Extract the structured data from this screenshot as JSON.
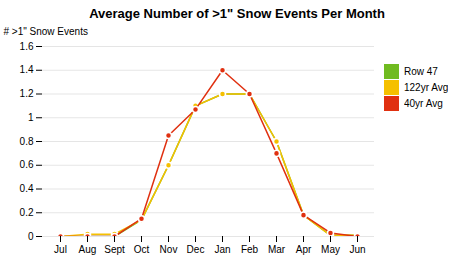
{
  "chart_data": {
    "type": "line",
    "title": "Average Number of >1\" Snow Events Per Month",
    "ylabel": "# >1\" Snow Events",
    "categories": [
      "Jul",
      "Aug",
      "Sept",
      "Oct",
      "Nov",
      "Dec",
      "Jan",
      "Feb",
      "Mar",
      "Apr",
      "May",
      "Jun"
    ],
    "series": [
      {
        "name": "Row 47",
        "color": "#70bb20",
        "marker": "circle",
        "values": [
          0.0,
          0.0,
          0.0,
          0.14,
          0.6,
          1.1,
          1.2,
          1.2,
          0.8,
          0.18,
          0.01,
          0.01
        ]
      },
      {
        "name": "122yr Avg",
        "color": "#f5c000",
        "marker": "circle",
        "values": [
          0.0,
          0.02,
          0.02,
          0.14,
          0.6,
          1.1,
          1.2,
          1.2,
          0.8,
          0.18,
          0.01,
          0.01
        ]
      },
      {
        "name": "40yr Avg",
        "color": "#e03010",
        "marker": "circle",
        "values": [
          0.0,
          0.0,
          0.0,
          0.15,
          0.85,
          1.07,
          1.4,
          1.2,
          0.7,
          0.18,
          0.03,
          0.0
        ]
      }
    ],
    "ylim": [
      0,
      1.6
    ],
    "yticks": [
      0,
      0.2,
      0.4,
      0.6,
      0.8,
      1,
      1.2,
      1.4,
      1.6
    ],
    "grid": true,
    "legend": "right"
  }
}
